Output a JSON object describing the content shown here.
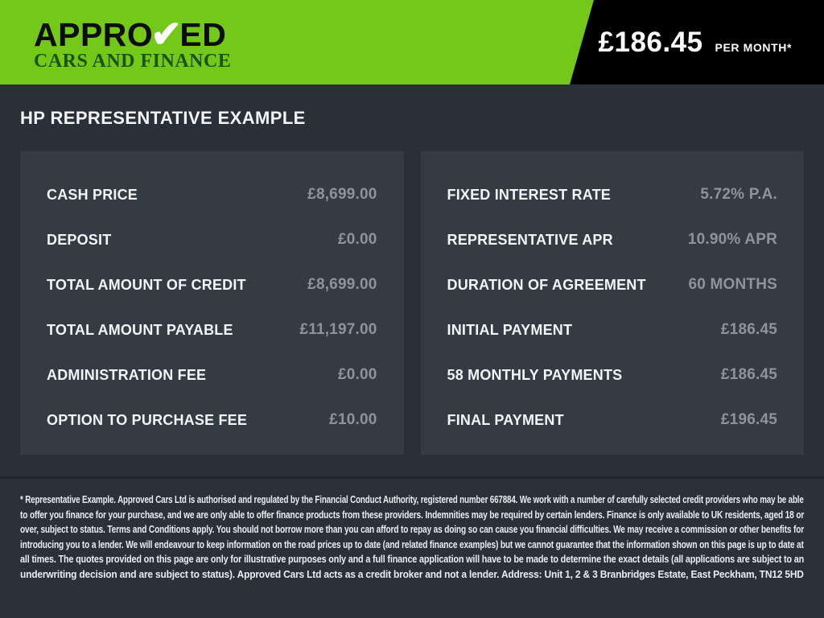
{
  "header": {
    "logo": {
      "title_pre": "APPRO",
      "check_glyph": "✔",
      "title_post": "ED",
      "subtitle": "CARS AND FINANCE"
    },
    "price": {
      "amount": "£186.45",
      "period": "PER MONTH*"
    }
  },
  "page_title": "HP REPRESENTATIVE EXAMPLE",
  "panels": {
    "left": {
      "rows": [
        {
          "label": "CASH PRICE",
          "value": "£8,699.00"
        },
        {
          "label": "DEPOSIT",
          "value": "£0.00"
        },
        {
          "label": "TOTAL AMOUNT OF CREDIT",
          "value": "£8,699.00"
        },
        {
          "label": "TOTAL AMOUNT PAYABLE",
          "value": "£11,197.00"
        },
        {
          "label": "ADMINISTRATION FEE",
          "value": "£0.00"
        },
        {
          "label": "OPTION TO PURCHASE FEE",
          "value": "£10.00"
        }
      ]
    },
    "right": {
      "rows": [
        {
          "label": "FIXED INTEREST RATE",
          "value": "5.72% P.A."
        },
        {
          "label": "REPRESENTATIVE APR",
          "value": "10.90% APR"
        },
        {
          "label": "DURATION OF AGREEMENT",
          "value": "60 MONTHS"
        },
        {
          "label": "INITIAL PAYMENT",
          "value": "£186.45"
        },
        {
          "label": "58 MONTHLY PAYMENTS",
          "value": "£186.45"
        },
        {
          "label": "FINAL PAYMENT",
          "value": "£196.45"
        }
      ]
    }
  },
  "disclaimer": {
    "lines": [
      "* Representative Example. Approved Cars Ltd is authorised and regulated by the Financial Conduct Authority, registered number 667884. We work with a number of carefully selected credit providers who may be able",
      "to offer you finance for your purchase, and we are only able to offer finance products from these providers. Indemnities may be required by certain lenders. Finance is only available to UK residents, aged 18 or",
      "over, subject to status. Terms and Conditions apply. You should not borrow more than you can afford to repay as doing so can cause you financial difficulties. We may receive a commission or other benefits for",
      "introducing you to a lender. We will endeavour to keep information on the road prices up to date (and related finance examples) but we cannot guarantee that the information shown on this page is up to date at",
      "all times. The quotes provided on this page are only for illustrative purposes only and a full finance application will have to be made to determine the exact details (all applications are subject to an",
      "underwriting decision and are subject to status). Approved Cars Ltd acts as a credit broker and not a lender. Address: Unit 1, 2 & 3 Branbridges Estate, East Peckham, TN12 5HD"
    ]
  },
  "colors": {
    "brand_green": "#73c818",
    "flag_black": "#000000",
    "page_bg": "#2a2f38",
    "panel_bg": "#343b45",
    "label_text": "#f3f5f7",
    "value_text": "#8d949d",
    "logo_subtitle_green": "#1a530f"
  }
}
